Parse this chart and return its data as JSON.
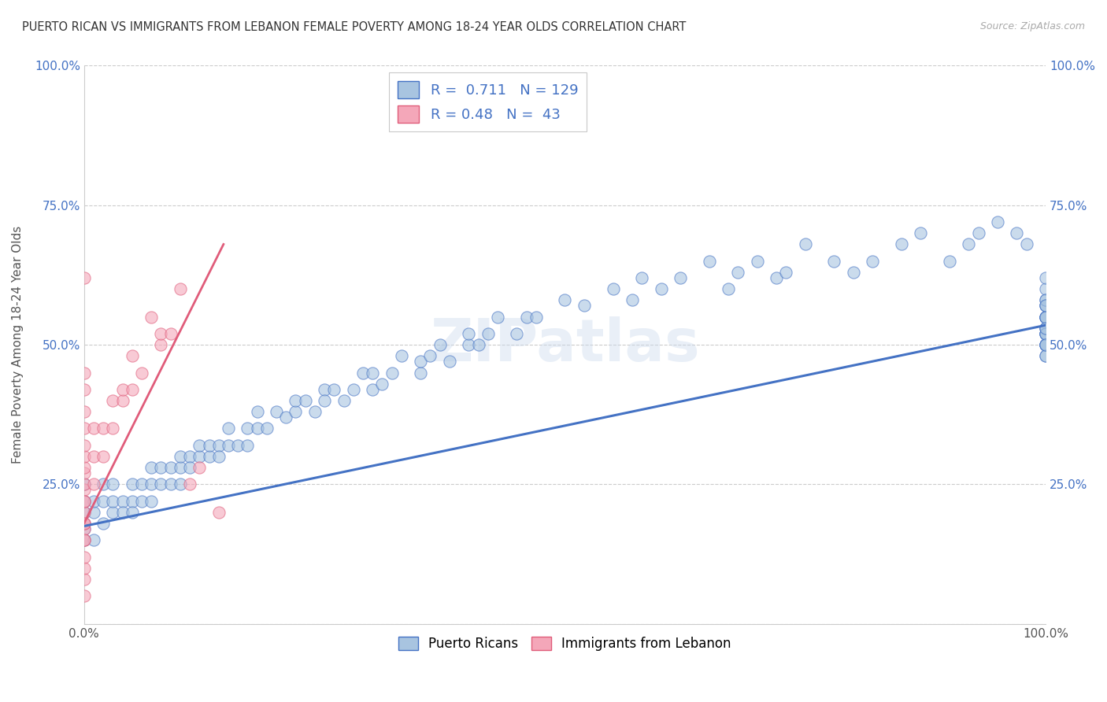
{
  "title": "PUERTO RICAN VS IMMIGRANTS FROM LEBANON FEMALE POVERTY AMONG 18-24 YEAR OLDS CORRELATION CHART",
  "source": "Source: ZipAtlas.com",
  "ylabel": "Female Poverty Among 18-24 Year Olds",
  "xlim": [
    0,
    1
  ],
  "ylim": [
    0,
    1
  ],
  "grid_color": "#cccccc",
  "background_color": "#ffffff",
  "blue_color": "#a8c4e0",
  "blue_line_color": "#4472c4",
  "pink_color": "#f4a7b9",
  "pink_line_color": "#e05c7a",
  "R_blue": 0.711,
  "N_blue": 129,
  "R_pink": 0.48,
  "N_pink": 43,
  "watermark": "ZIPatlas",
  "legend_labels": [
    "Puerto Ricans",
    "Immigrants from Lebanon"
  ],
  "blue_scatter_x": [
    0.0,
    0.0,
    0.0,
    0.0,
    0.0,
    0.0,
    0.01,
    0.01,
    0.01,
    0.02,
    0.02,
    0.02,
    0.03,
    0.03,
    0.03,
    0.04,
    0.04,
    0.05,
    0.05,
    0.05,
    0.06,
    0.06,
    0.07,
    0.07,
    0.07,
    0.08,
    0.08,
    0.09,
    0.09,
    0.1,
    0.1,
    0.1,
    0.11,
    0.11,
    0.12,
    0.12,
    0.13,
    0.13,
    0.14,
    0.14,
    0.15,
    0.15,
    0.16,
    0.17,
    0.17,
    0.18,
    0.18,
    0.19,
    0.2,
    0.21,
    0.22,
    0.22,
    0.23,
    0.24,
    0.25,
    0.25,
    0.26,
    0.27,
    0.28,
    0.29,
    0.3,
    0.3,
    0.31,
    0.32,
    0.33,
    0.35,
    0.35,
    0.36,
    0.37,
    0.38,
    0.4,
    0.4,
    0.41,
    0.42,
    0.43,
    0.45,
    0.46,
    0.47,
    0.5,
    0.52,
    0.55,
    0.57,
    0.58,
    0.6,
    0.62,
    0.65,
    0.67,
    0.68,
    0.7,
    0.72,
    0.73,
    0.75,
    0.78,
    0.8,
    0.82,
    0.85,
    0.87,
    0.9,
    0.92,
    0.93,
    0.95,
    0.97,
    0.98,
    1.0,
    1.0,
    1.0,
    1.0,
    1.0,
    1.0,
    1.0,
    1.0,
    1.0,
    1.0,
    1.0,
    1.0,
    1.0,
    1.0,
    1.0,
    1.0,
    1.0,
    1.0,
    1.0,
    1.0,
    1.0,
    1.0,
    1.0,
    1.0,
    1.0,
    1.0
  ],
  "blue_scatter_y": [
    0.15,
    0.18,
    0.2,
    0.22,
    0.25,
    0.17,
    0.15,
    0.2,
    0.22,
    0.18,
    0.22,
    0.25,
    0.2,
    0.22,
    0.25,
    0.22,
    0.2,
    0.25,
    0.22,
    0.2,
    0.22,
    0.25,
    0.25,
    0.28,
    0.22,
    0.25,
    0.28,
    0.25,
    0.28,
    0.28,
    0.3,
    0.25,
    0.3,
    0.28,
    0.3,
    0.32,
    0.3,
    0.32,
    0.32,
    0.3,
    0.32,
    0.35,
    0.32,
    0.32,
    0.35,
    0.35,
    0.38,
    0.35,
    0.38,
    0.37,
    0.38,
    0.4,
    0.4,
    0.38,
    0.42,
    0.4,
    0.42,
    0.4,
    0.42,
    0.45,
    0.42,
    0.45,
    0.43,
    0.45,
    0.48,
    0.45,
    0.47,
    0.48,
    0.5,
    0.47,
    0.5,
    0.52,
    0.5,
    0.52,
    0.55,
    0.52,
    0.55,
    0.55,
    0.58,
    0.57,
    0.6,
    0.58,
    0.62,
    0.6,
    0.62,
    0.65,
    0.6,
    0.63,
    0.65,
    0.62,
    0.63,
    0.68,
    0.65,
    0.63,
    0.65,
    0.68,
    0.7,
    0.65,
    0.68,
    0.7,
    0.72,
    0.7,
    0.68,
    0.52,
    0.55,
    0.5,
    0.53,
    0.55,
    0.57,
    0.52,
    0.5,
    0.58,
    0.6,
    0.52,
    0.55,
    0.57,
    0.5,
    0.48,
    0.62,
    0.55,
    0.58,
    0.5,
    0.53,
    0.55,
    0.48,
    0.52,
    0.5,
    0.53,
    0.57
  ],
  "pink_scatter_x": [
    0.0,
    0.0,
    0.0,
    0.0,
    0.0,
    0.0,
    0.0,
    0.0,
    0.0,
    0.0,
    0.0,
    0.0,
    0.0,
    0.0,
    0.0,
    0.0,
    0.0,
    0.0,
    0.0,
    0.0,
    0.01,
    0.01,
    0.01,
    0.02,
    0.02,
    0.03,
    0.03,
    0.04,
    0.04,
    0.05,
    0.05,
    0.06,
    0.07,
    0.08,
    0.08,
    0.09,
    0.1,
    0.11,
    0.12,
    0.14,
    0.0,
    0.0,
    0.0
  ],
  "pink_scatter_y": [
    0.62,
    0.05,
    0.08,
    0.1,
    0.12,
    0.15,
    0.17,
    0.18,
    0.2,
    0.22,
    0.24,
    0.25,
    0.27,
    0.28,
    0.3,
    0.32,
    0.35,
    0.38,
    0.42,
    0.15,
    0.25,
    0.3,
    0.35,
    0.3,
    0.35,
    0.35,
    0.4,
    0.4,
    0.42,
    0.42,
    0.48,
    0.45,
    0.55,
    0.5,
    0.52,
    0.52,
    0.6,
    0.25,
    0.28,
    0.2,
    0.18,
    0.22,
    0.45
  ],
  "blue_trend_x": [
    0.0,
    1.0
  ],
  "blue_trend_y": [
    0.175,
    0.535
  ],
  "pink_trend_x": [
    0.0,
    0.145
  ],
  "pink_trend_y": [
    0.18,
    0.68
  ]
}
